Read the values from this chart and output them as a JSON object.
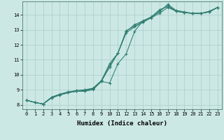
{
  "xlabel": "Humidex (Indice chaleur)",
  "xlim": [
    -0.5,
    23.5
  ],
  "ylim": [
    7.7,
    14.9
  ],
  "yticks": [
    8,
    9,
    10,
    11,
    12,
    13,
    14
  ],
  "xticks": [
    0,
    1,
    2,
    3,
    4,
    5,
    6,
    7,
    8,
    9,
    10,
    11,
    12,
    13,
    14,
    15,
    16,
    17,
    18,
    19,
    20,
    21,
    22,
    23
  ],
  "bg_color": "#cce8e5",
  "grid_color": "#aaccca",
  "line_color": "#2e7d70",
  "lines": [
    [
      8.3,
      8.15,
      8.05,
      8.45,
      8.65,
      8.8,
      8.9,
      8.9,
      9.0,
      9.55,
      10.5,
      11.45,
      12.8,
      13.2,
      13.5,
      13.8,
      14.1,
      14.5,
      14.25,
      14.15,
      14.1,
      14.1,
      14.2,
      14.5
    ],
    [
      8.3,
      8.15,
      8.05,
      8.45,
      8.65,
      8.8,
      8.9,
      8.9,
      9.05,
      9.55,
      9.45,
      10.75,
      11.4,
      12.9,
      13.6,
      13.85,
      14.35,
      14.55,
      14.25,
      14.15,
      14.1,
      14.1,
      14.2,
      14.5
    ],
    [
      8.3,
      8.15,
      8.05,
      8.5,
      8.7,
      8.85,
      8.95,
      9.0,
      9.1,
      9.6,
      10.75,
      11.45,
      12.95,
      13.25,
      13.55,
      13.85,
      14.2,
      14.7,
      14.3,
      14.2,
      14.1,
      14.1,
      14.25,
      14.5
    ],
    [
      8.3,
      8.15,
      8.05,
      8.5,
      8.7,
      8.85,
      8.9,
      8.95,
      9.1,
      9.6,
      10.6,
      11.45,
      12.9,
      13.35,
      13.6,
      13.85,
      14.25,
      14.65,
      14.25,
      14.15,
      14.1,
      14.1,
      14.2,
      14.5
    ]
  ]
}
